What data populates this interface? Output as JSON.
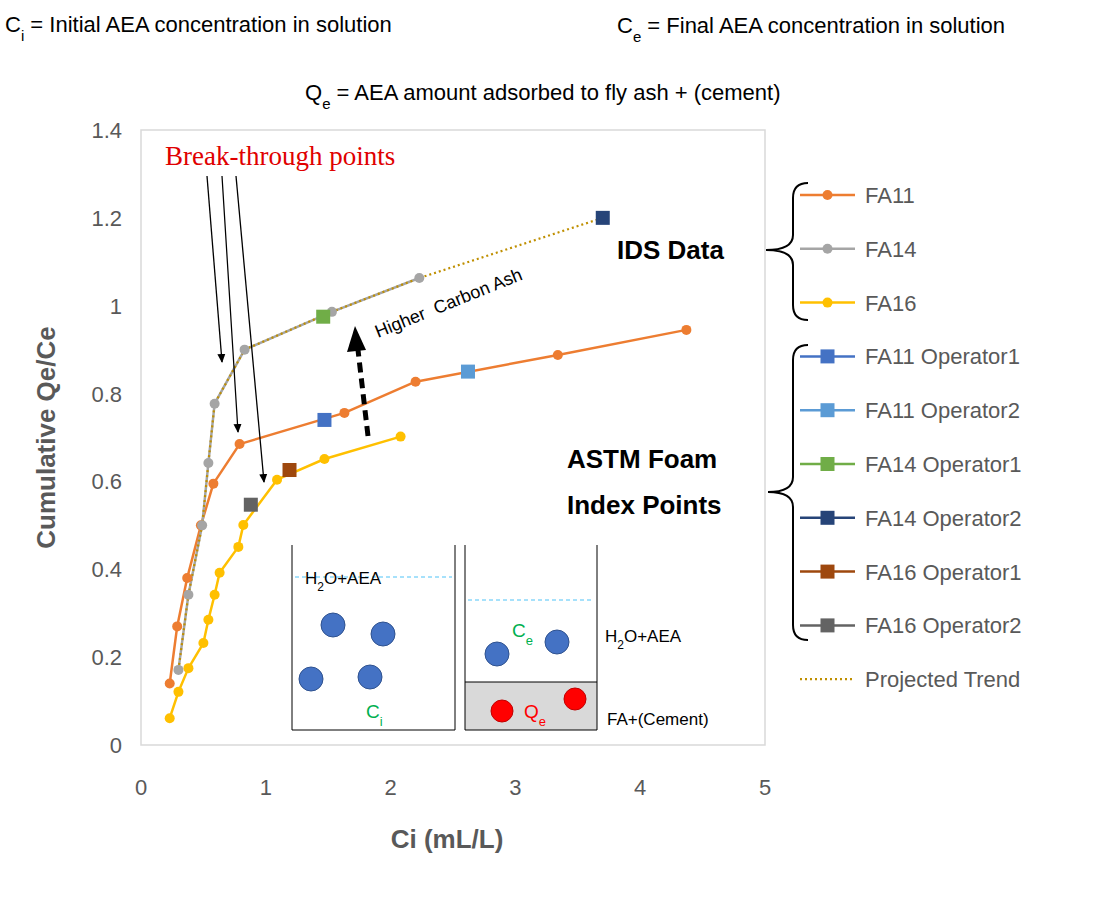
{
  "chart_data": {
    "type": "line",
    "header_notes": [
      {
        "parts": [
          {
            "text": "C"
          },
          {
            "text": "i",
            "sub": true
          },
          {
            "text": " = Initial AEA concentration in solution"
          }
        ]
      },
      {
        "parts": [
          {
            "text": "C"
          },
          {
            "text": "e",
            "sub": true
          },
          {
            "text": " = Final AEA concentration in solution"
          }
        ]
      },
      {
        "parts": [
          {
            "text": "Q"
          },
          {
            "text": "e",
            "sub": true
          },
          {
            "text": " = AEA amount adsorbed to fly ash + (cement)"
          }
        ]
      }
    ],
    "x_label": "Ci (mL/L)",
    "y_label": "Cumulative Qe/Ce",
    "xlim": [
      0,
      5
    ],
    "ylim": [
      0,
      1.4
    ],
    "xticks": [
      0,
      1,
      2,
      3,
      4,
      5
    ],
    "yticks": [
      0,
      0.2,
      0.4,
      0.6,
      0.8,
      1,
      1.2,
      1.4
    ],
    "grid": false,
    "legend": "right",
    "series": [
      {
        "name": "FA11",
        "color": "#ED7D31",
        "marker": "circle",
        "line_style": "solid",
        "x": [
          0.23,
          0.29,
          0.37,
          0.48,
          0.58,
          0.79,
          1.63,
          2.2,
          3.34,
          4.37
        ],
        "values": [
          0.14,
          0.27,
          0.38,
          0.5,
          0.595,
          0.685,
          0.756,
          0.827,
          0.888,
          0.945
        ]
      },
      {
        "name": "FA14",
        "color": "#A5A5A5",
        "marker": "circle",
        "line_style": "solid",
        "x": [
          0.3,
          0.38,
          0.49,
          0.54,
          0.59,
          0.83,
          1.53,
          2.23
        ],
        "values": [
          0.171,
          0.342,
          0.5,
          0.642,
          0.777,
          0.9,
          0.986,
          1.063
        ]
      },
      {
        "name": "FA16",
        "color": "#FFC000",
        "marker": "circle",
        "line_style": "solid",
        "x": [
          0.23,
          0.3,
          0.38,
          0.5,
          0.54,
          0.59,
          0.63,
          0.78,
          0.82,
          1.09,
          1.47,
          2.08
        ],
        "values": [
          0.061,
          0.121,
          0.175,
          0.232,
          0.285,
          0.342,
          0.392,
          0.451,
          0.501,
          0.604,
          0.651,
          0.702
        ]
      },
      {
        "name": "FA11 Operator1",
        "color": "#4472C4",
        "marker": "square",
        "line_style": "solid",
        "x": [
          1.47
        ],
        "values": [
          0.74
        ]
      },
      {
        "name": "FA11 Operator2",
        "color": "#5B9BD5",
        "marker": "square",
        "line_style": "solid",
        "x": [
          2.62
        ],
        "values": [
          0.85
        ]
      },
      {
        "name": "FA14 Operator1",
        "color": "#70AD47",
        "marker": "square",
        "line_style": "solid",
        "x": [
          1.46
        ],
        "values": [
          0.975
        ]
      },
      {
        "name": "FA14 Operator2",
        "color": "#264478",
        "marker": "square",
        "line_style": "solid",
        "x": [
          3.7
        ],
        "values": [
          1.2
        ]
      },
      {
        "name": "FA16 Operator1",
        "color": "#9E480E",
        "marker": "square",
        "line_style": "solid",
        "x": [
          1.19
        ],
        "values": [
          0.626
        ]
      },
      {
        "name": "FA16 Operator2",
        "color": "#636363",
        "marker": "square",
        "line_style": "solid",
        "x": [
          0.88
        ],
        "values": [
          0.547
        ]
      },
      {
        "name": "Projected Trend",
        "color": "#BF8F00",
        "marker": "none",
        "line_style": "dotted",
        "x": [
          0.3,
          0.38,
          0.49,
          0.54,
          0.59,
          0.83,
          1.53,
          2.23,
          3.7
        ],
        "values": [
          0.171,
          0.342,
          0.5,
          0.642,
          0.777,
          0.9,
          0.986,
          1.063,
          1.2
        ]
      }
    ],
    "annotations": {
      "break_through": "Break-through points",
      "trend": "Higher  Carbon Ash",
      "group_ids": "IDS Data",
      "group_astm": [
        "ASTM Foam",
        "Index Points"
      ]
    },
    "inset": {
      "before": {
        "liquid": [
          {
            "text": "H"
          },
          {
            "text": "2",
            "sub": true
          },
          {
            "text": "O+AEA"
          }
        ],
        "concentration": [
          {
            "text": "C"
          },
          {
            "text": "i",
            "sub": true
          }
        ]
      },
      "after": {
        "liquid": [
          {
            "text": "H"
          },
          {
            "text": "2",
            "sub": true
          },
          {
            "text": "O+AEA"
          }
        ],
        "concentration": [
          {
            "text": "C"
          },
          {
            "text": "e",
            "sub": true
          }
        ],
        "adsorbed": [
          {
            "text": "Q"
          },
          {
            "text": "e",
            "sub": true
          }
        ],
        "solid": "FA+(Cement)"
      }
    }
  }
}
